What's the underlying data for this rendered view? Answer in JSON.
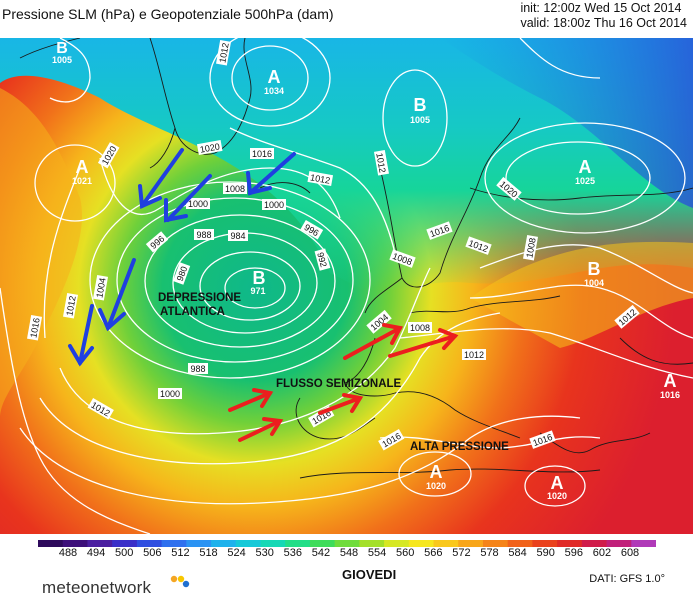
{
  "header": {
    "title": "Pressione SLM (hPa) e Geopotenziale 500hPa (dam)",
    "init": "init: 12:00z Wed 15 Oct 2014",
    "valid": "valid: 18:00z Thu 16 Oct 2014"
  },
  "map": {
    "pressure_centers": [
      {
        "letter": "B",
        "value": "1005"
      },
      {
        "letter": "A",
        "value": "1034"
      },
      {
        "letter": "B",
        "value": "1005"
      },
      {
        "letter": "A",
        "value": "1025"
      },
      {
        "letter": "A",
        "value": "1021"
      },
      {
        "letter": "B",
        "value": "971"
      },
      {
        "letter": "B",
        "value": "1004"
      },
      {
        "letter": "A",
        "value": "1016"
      },
      {
        "letter": "A",
        "value": "1020"
      },
      {
        "letter": "A",
        "value": "1020"
      }
    ],
    "isobar_labels": [
      "1012",
      "1020",
      "1016",
      "1012",
      "1020",
      "1008",
      "1000",
      "1000",
      "996",
      "988",
      "984",
      "980",
      "992",
      "996",
      "1012",
      "1016",
      "1008",
      "1020",
      "1012",
      "1008",
      "1004",
      "1008",
      "1012",
      "1004",
      "1016",
      "1012",
      "988",
      "1000",
      "1012",
      "1016",
      "1016",
      "1012",
      "1016"
    ],
    "annotations": {
      "depression": "DEPRESSIONE\nATLANTICA",
      "flow": "FLUSSO SEMIZONALE",
      "high": "ALTA PRESSIONE"
    }
  },
  "legend": {
    "colors": [
      "#2e0a5c",
      "#3d0f7a",
      "#4b1fa0",
      "#3a2fc8",
      "#2f4ee0",
      "#2f70ee",
      "#2b93f3",
      "#1fb2ec",
      "#17c9d8",
      "#16d8b5",
      "#22de88",
      "#3edc5a",
      "#6fdc3c",
      "#a4e02a",
      "#d6e824",
      "#f6e71e",
      "#f9c81c",
      "#f8a61a",
      "#f58419",
      "#f1621a",
      "#ea421d",
      "#e02a27",
      "#d01c4a",
      "#c1207a",
      "#b03ab8"
    ],
    "labels": [
      "488",
      "494",
      "500",
      "506",
      "512",
      "518",
      "524",
      "530",
      "536",
      "542",
      "548",
      "554",
      "560",
      "566",
      "572",
      "578",
      "584",
      "590",
      "596",
      "602",
      "608"
    ],
    "day": "GIOVEDI"
  },
  "footer": {
    "logo": "meteonetwork",
    "dati": "DATI:  GFS  1.0°"
  }
}
